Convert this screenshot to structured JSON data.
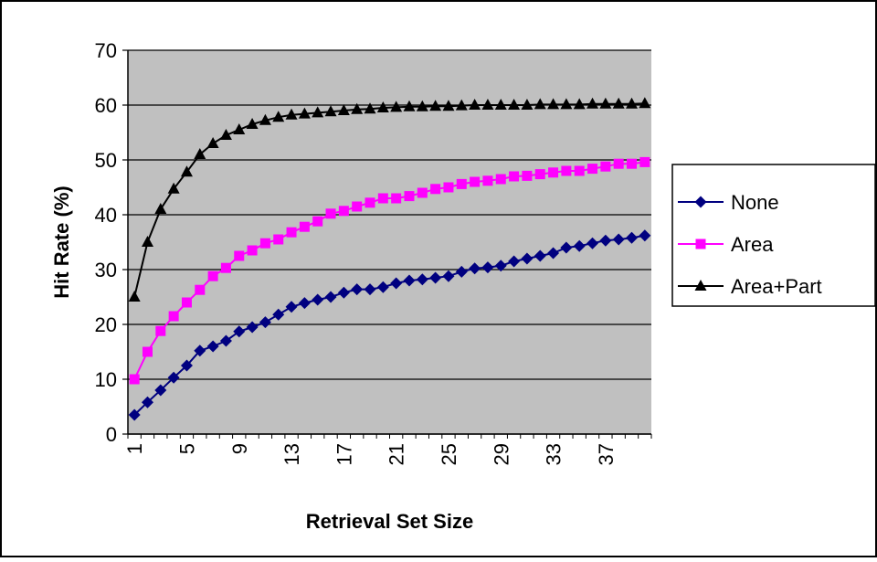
{
  "chart_data": {
    "type": "line",
    "title": "",
    "xlabel": "Retrieval Set Size",
    "ylabel": "Hit Rate (%)",
    "ylim": [
      0,
      70
    ],
    "yticks": [
      0,
      10,
      20,
      30,
      40,
      50,
      60,
      70
    ],
    "x": [
      1,
      2,
      3,
      4,
      5,
      6,
      7,
      8,
      9,
      10,
      11,
      12,
      13,
      14,
      15,
      16,
      17,
      18,
      19,
      20,
      21,
      22,
      23,
      24,
      25,
      26,
      27,
      28,
      29,
      30,
      31,
      32,
      33,
      34,
      35,
      36,
      37,
      38,
      39,
      40
    ],
    "xtick_labels": [
      "1",
      "5",
      "9",
      "13",
      "17",
      "21",
      "25",
      "29",
      "33",
      "37"
    ],
    "grid": "horizontal",
    "plot_background": "#c0c0c0",
    "legend_position": "right",
    "series": [
      {
        "name": "None",
        "color": "#000080",
        "marker": "diamond",
        "values": [
          3.5,
          5.8,
          8.0,
          10.3,
          12.5,
          15.2,
          16.0,
          17.0,
          18.7,
          19.5,
          20.4,
          21.8,
          23.2,
          23.9,
          24.5,
          25.0,
          25.8,
          26.4,
          26.4,
          26.8,
          27.5,
          28.0,
          28.2,
          28.5,
          28.8,
          29.6,
          30.2,
          30.4,
          30.7,
          31.5,
          32.0,
          32.5,
          33.0,
          34.0,
          34.3,
          34.8,
          35.3,
          35.5,
          35.8,
          36.2
        ]
      },
      {
        "name": "Area",
        "color": "#ff00ff",
        "marker": "square",
        "values": [
          10.0,
          15.0,
          18.8,
          21.5,
          24.0,
          26.3,
          28.8,
          30.3,
          32.5,
          33.5,
          34.8,
          35.5,
          36.8,
          37.8,
          38.8,
          40.2,
          40.7,
          41.5,
          42.2,
          43.0,
          43.0,
          43.4,
          44.0,
          44.7,
          45.0,
          45.6,
          46.0,
          46.2,
          46.5,
          47.0,
          47.1,
          47.4,
          47.7,
          48.0,
          48.0,
          48.4,
          48.8,
          49.3,
          49.3,
          49.6
        ]
      },
      {
        "name": "Area+Part",
        "color": "#000000",
        "marker": "triangle",
        "values": [
          25.0,
          35.0,
          41.0,
          44.7,
          47.8,
          51.0,
          53.0,
          54.5,
          55.5,
          56.5,
          57.2,
          57.8,
          58.2,
          58.4,
          58.6,
          58.8,
          59.0,
          59.2,
          59.3,
          59.5,
          59.6,
          59.7,
          59.7,
          59.8,
          59.8,
          59.9,
          60.0,
          60.0,
          60.0,
          60.0,
          60.0,
          60.1,
          60.1,
          60.1,
          60.1,
          60.2,
          60.2,
          60.2,
          60.2,
          60.3
        ]
      }
    ]
  }
}
